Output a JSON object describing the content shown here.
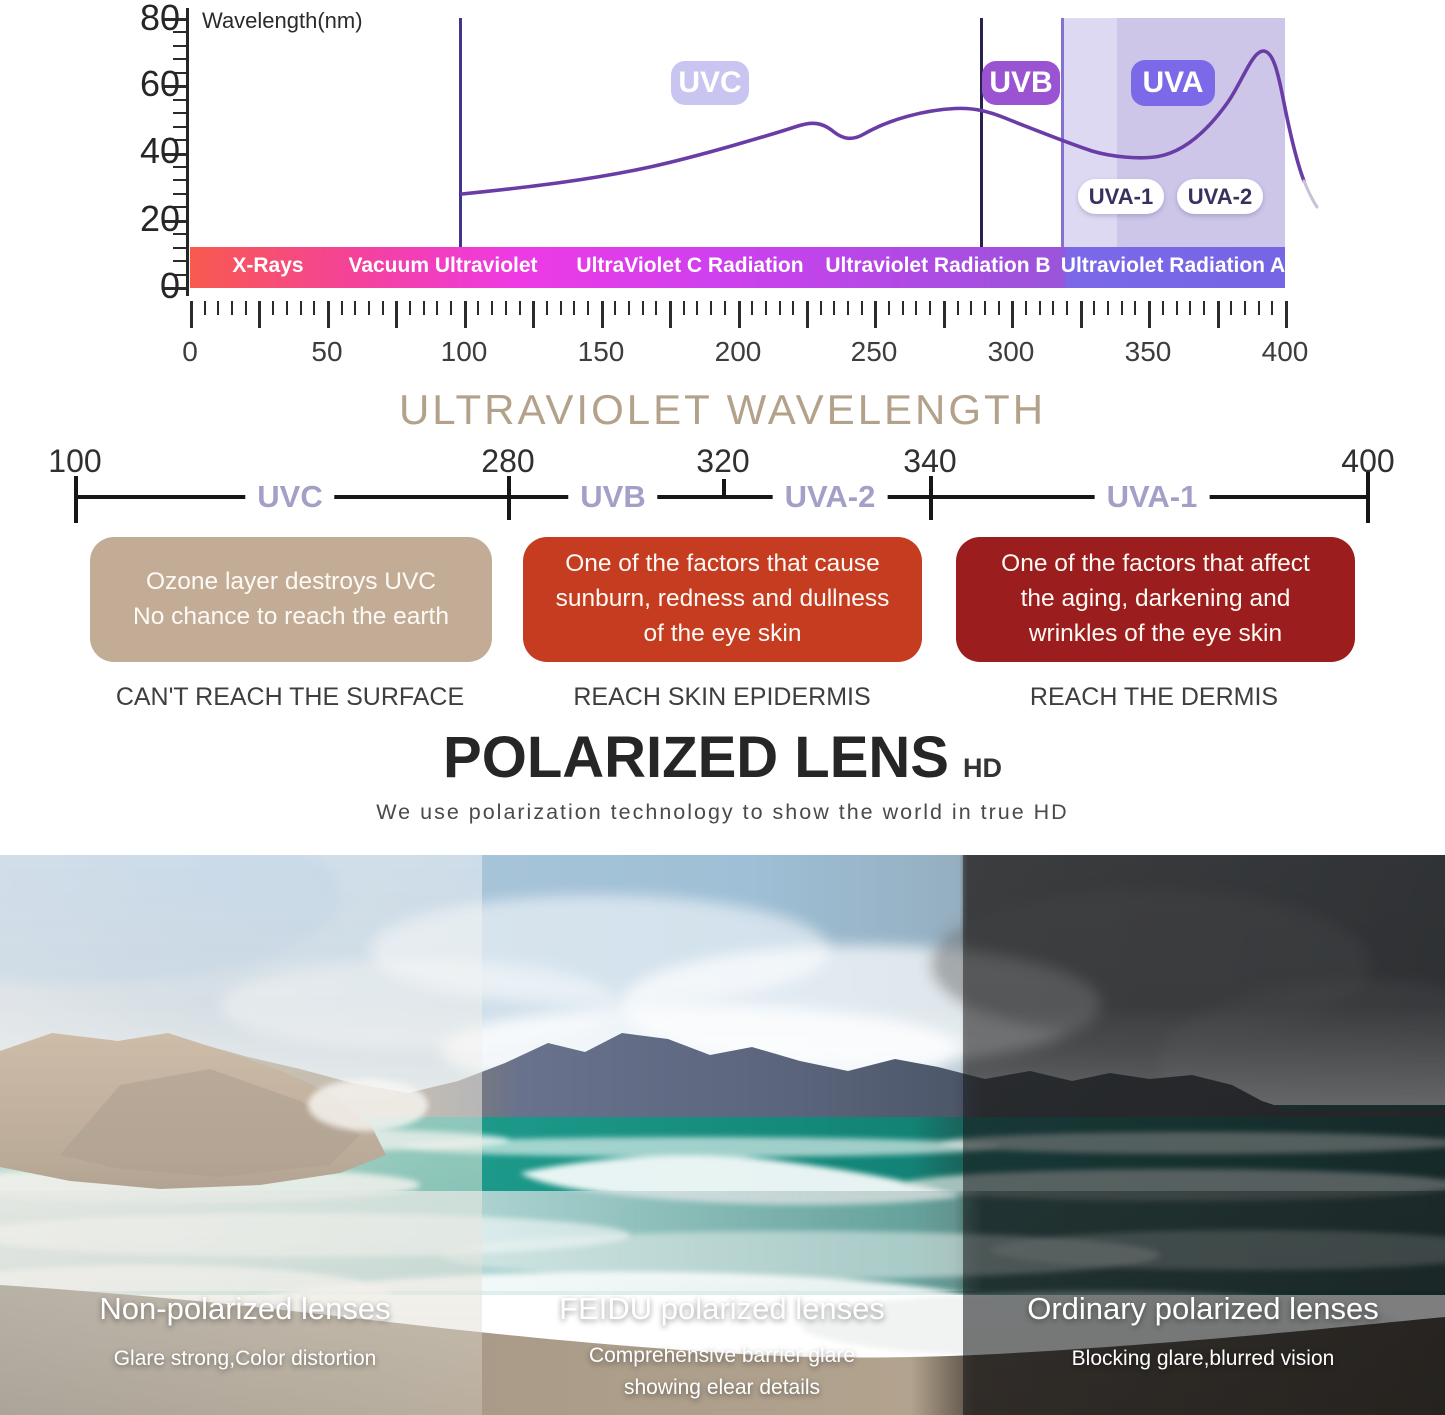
{
  "uv_chart": {
    "y_axis_label": "Wavelength(nm)",
    "y_ticks": [
      "80",
      "60",
      "40",
      "20",
      "0"
    ],
    "x_ticks": [
      "0",
      "50",
      "100",
      "150",
      "200",
      "250",
      "300",
      "350",
      "400"
    ],
    "region_pills": {
      "uvc": "UVC",
      "uvb": "UVB",
      "uva": "UVA",
      "uva1": "UVA-1",
      "uva2": "UVA-2"
    },
    "spectrum_segments": [
      {
        "label": "X-Rays"
      },
      {
        "label": "Vacuum Ultraviolet"
      },
      {
        "label": "UltraViolet C Radiation"
      },
      {
        "label": "Ultraviolet Radiation B"
      },
      {
        "label": "Ultraviolet Radiation A"
      }
    ],
    "colors": {
      "curve": "#6a3da6",
      "uvc_pill": "#c8c5f0",
      "uvb_pill": "#9a54d2",
      "uva_pill": "#7b69e8",
      "shade_light": "#ded9f2",
      "shade_dark": "#cdc6e9",
      "band_start": "#f85a4e",
      "band_magenta": "#ee3ae5",
      "band_purple": "#b04ae4",
      "band_violet": "#7566e6"
    }
  },
  "wavelength_scale": {
    "title": "ULTRAVIOLET WAVELENGTH",
    "tick_values": [
      "100",
      "280",
      "320",
      "340",
      "400"
    ],
    "segment_labels": [
      "UVC",
      "UVB",
      "UVA-2",
      "UVA-1"
    ]
  },
  "uv_effects": {
    "boxes": [
      {
        "text": "Ozone layer destroys UVC\nNo chance to reach the earth",
        "caption": "CAN'T REACH THE SURFACE",
        "color": "#c3ac96"
      },
      {
        "text": "One of the factors that cause\nsunburn, redness and dullness\nof the eye skin",
        "caption": "REACH SKIN EPIDERMIS",
        "color": "#c53c21"
      },
      {
        "text": "One of the factors that affect\nthe aging, darkening and\nwrinkles of the eye skin",
        "caption": "REACH THE DERMIS",
        "color": "#9c1d1d"
      }
    ]
  },
  "polarized_section": {
    "title": "POLARIZED LENS",
    "badge": "HD",
    "subtitle": "We use polarization technology to show the world in true HD"
  },
  "lens_comparison": {
    "panels": [
      {
        "title": "Non-polarized lenses",
        "subtitle": "Glare strong,Color distortion"
      },
      {
        "title": "FEIDU polarized lenses",
        "subtitle": "Comprehensive barrier glare\nshowing elear details"
      },
      {
        "title": "Ordinary polarized lenses",
        "subtitle": "Blocking glare,blurred vision"
      }
    ]
  }
}
